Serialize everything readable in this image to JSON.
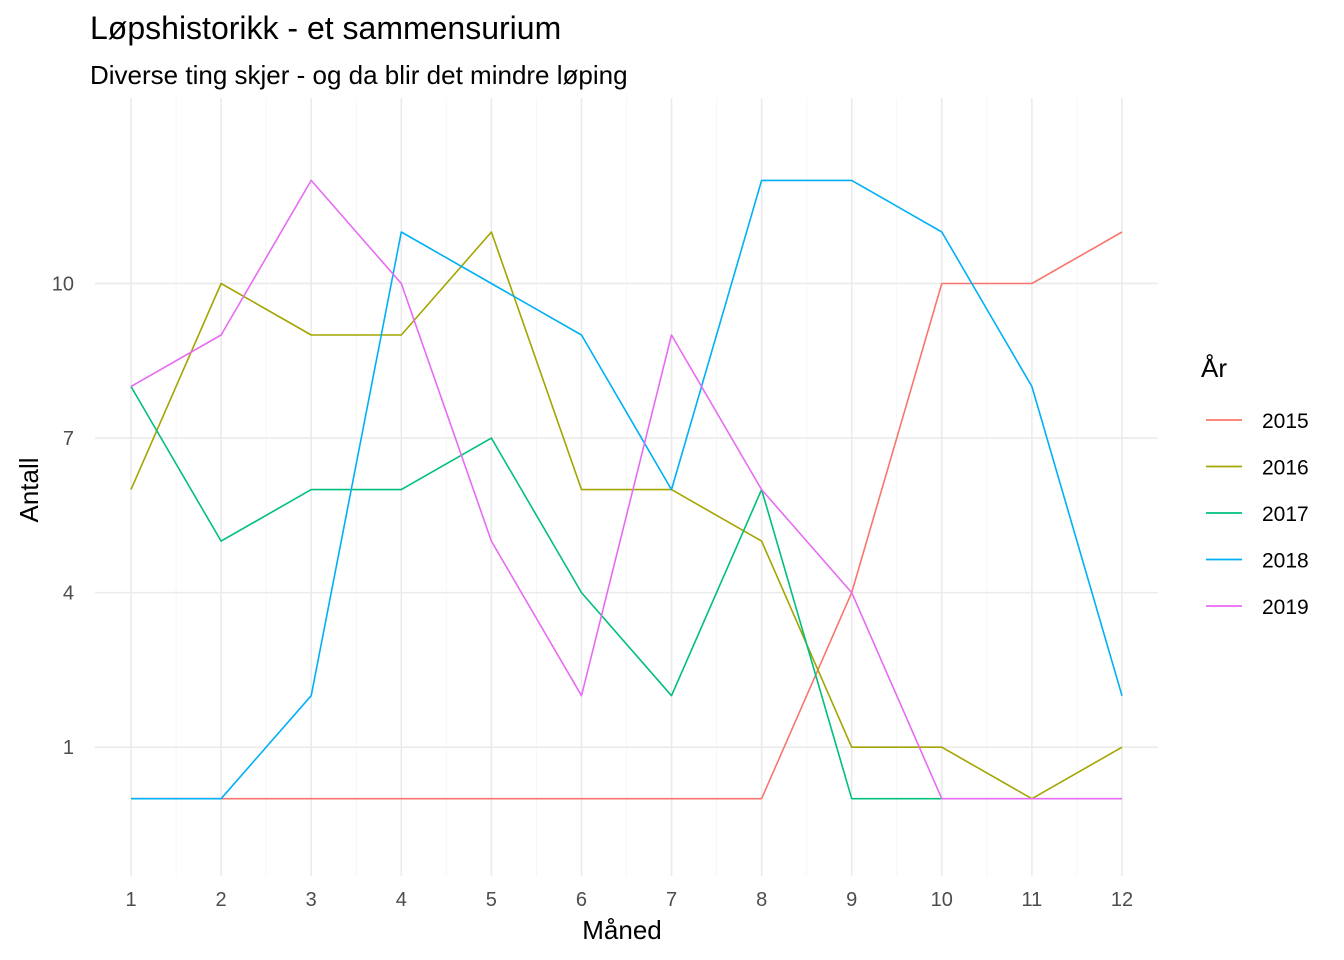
{
  "chart_data": {
    "type": "line",
    "title": "Løpshistorikk - et sammensurium",
    "subtitle": "Diverse ting skjer - og da blir det mindre løping",
    "xlabel": "Måned",
    "ylabel": "Antall",
    "x": [
      1,
      2,
      3,
      4,
      5,
      6,
      7,
      8,
      9,
      10,
      11,
      12
    ],
    "x_ticks": [
      "1",
      "2",
      "3",
      "4",
      "5",
      "6",
      "7",
      "8",
      "9",
      "10",
      "11",
      "12"
    ],
    "y_ticks": [
      1,
      4,
      7,
      10
    ],
    "xlim": [
      0.6,
      12.4
    ],
    "ylim": [
      -1.5,
      13.6
    ],
    "grid": true,
    "legend": {
      "title": "År",
      "position": "right"
    },
    "series": [
      {
        "name": "2015",
        "color": "#F8766D",
        "values": [
          0,
          0,
          0,
          0,
          0,
          0,
          0,
          0,
          4,
          10,
          10,
          11
        ]
      },
      {
        "name": "2016",
        "color": "#A3A500",
        "values": [
          6,
          10,
          9,
          9,
          11,
          6,
          6,
          5,
          1,
          1,
          0,
          1
        ]
      },
      {
        "name": "2017",
        "color": "#00BF7D",
        "values": [
          8,
          5,
          6,
          6,
          7,
          4,
          2,
          6,
          0,
          0,
          null,
          null
        ]
      },
      {
        "name": "2018",
        "color": "#00B0F6",
        "values": [
          0,
          0,
          2,
          11,
          10,
          9,
          6,
          12,
          12,
          11,
          8,
          2
        ]
      },
      {
        "name": "2019",
        "color": "#E76BF3",
        "values": [
          8,
          9,
          12,
          10,
          5,
          2,
          9,
          6,
          4,
          0,
          0,
          0
        ]
      }
    ]
  }
}
